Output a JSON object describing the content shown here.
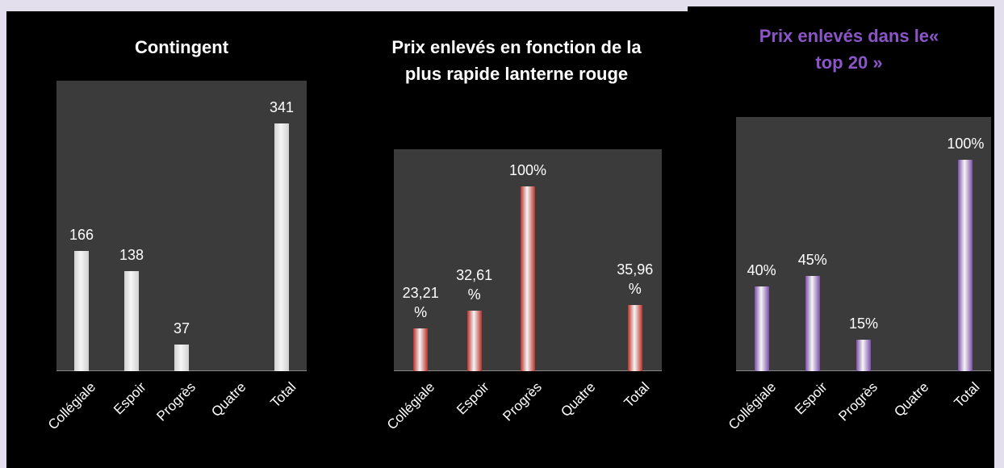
{
  "chart_data": [
    {
      "type": "bar",
      "title": "Contingent",
      "categories": [
        "Collégiale",
        "Espoir",
        "Progrès",
        "Quatre",
        "Total"
      ],
      "values": [
        166,
        138,
        37,
        null,
        341
      ],
      "color": "#d9d9d9",
      "title_color": "#ffffff",
      "ylim": [
        0,
        400
      ]
    },
    {
      "type": "bar",
      "title": "Prix enlevés en fonction de la plus rapide lanterne rouge",
      "categories": [
        "Collégiale",
        "Espoir",
        "Progrès",
        "Quatre",
        "Total"
      ],
      "values": [
        23.21,
        32.61,
        100,
        null,
        35.96
      ],
      "value_labels": [
        "23,21 %",
        "32,61 %",
        "100%",
        null,
        "35,96 %"
      ],
      "color": "#c0302a",
      "title_color": "#ffffff",
      "ylim": [
        0,
        120
      ]
    },
    {
      "type": "bar",
      "title": "Prix enlevés dans le« top 20 »",
      "categories": [
        "Collégiale",
        "Espoir",
        "Progrès",
        "Quatre",
        "Total"
      ],
      "values": [
        40,
        45,
        15,
        null,
        100
      ],
      "value_labels": [
        "40%",
        "45%",
        "15%",
        null,
        "100%"
      ],
      "color": "#7f4fb0",
      "title_color": "#8b55c8",
      "ylim": [
        0,
        120
      ]
    }
  ]
}
